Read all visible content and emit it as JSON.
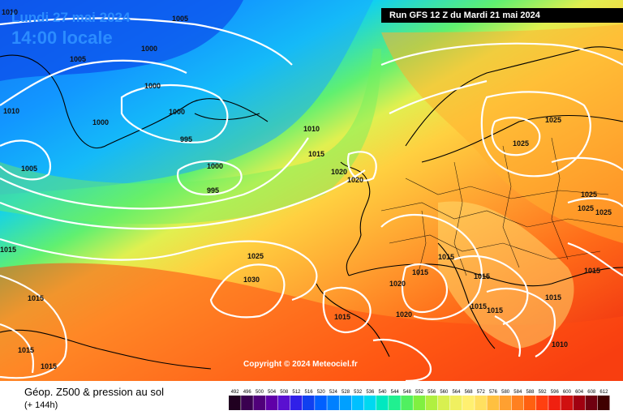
{
  "header": {
    "valid_date": "Lundi 27 mai 2024",
    "valid_time": "14:00 locale",
    "run_info": "Run GFS 12 Z du Mardi 21 mai 2024"
  },
  "copyright": "Copyright © 2024 Meteociel.fr",
  "footer": {
    "title": "Géop. Z500 & pression au sol",
    "subtitle": "(+ 144h)"
  },
  "legend": {
    "labels": [
      "492",
      "496",
      "500",
      "504",
      "508",
      "512",
      "516",
      "520",
      "524",
      "528",
      "532",
      "536",
      "540",
      "544",
      "548",
      "552",
      "556",
      "560",
      "564",
      "568",
      "572",
      "576",
      "580",
      "584",
      "588",
      "592",
      "596",
      "600",
      "604",
      "608",
      "612"
    ],
    "colors": [
      "#200020",
      "#3a0050",
      "#50007a",
      "#6000a8",
      "#5a10d0",
      "#3020e8",
      "#1040f0",
      "#0060ff",
      "#0080ff",
      "#00a0ff",
      "#00c0ff",
      "#00d8f0",
      "#00e8c0",
      "#20f090",
      "#50f060",
      "#80f040",
      "#b0f040",
      "#d8f050",
      "#f0f060",
      "#fff070",
      "#ffe060",
      "#ffc040",
      "#ffa030",
      "#ff8020",
      "#ff6010",
      "#ff4010",
      "#f02010",
      "#d01010",
      "#a00010",
      "#700010",
      "#400000"
    ]
  },
  "isobars": [
    {
      "text": "1010"
    },
    {
      "text": "1005"
    },
    {
      "text": "1000"
    },
    {
      "text": "1005"
    },
    {
      "text": "1000"
    },
    {
      "text": "1000"
    },
    {
      "text": "1010"
    },
    {
      "text": "1000"
    },
    {
      "text": "995"
    },
    {
      "text": "1005"
    },
    {
      "text": "1000"
    },
    {
      "text": "995"
    },
    {
      "text": "1010"
    },
    {
      "text": "1015"
    },
    {
      "text": "1020"
    },
    {
      "text": "1020"
    },
    {
      "text": "1015"
    },
    {
      "text": "1025"
    },
    {
      "text": "1030"
    },
    {
      "text": "1015"
    },
    {
      "text": "1015"
    },
    {
      "text": "1015"
    },
    {
      "text": "1015"
    },
    {
      "text": "1020"
    },
    {
      "text": "1015"
    },
    {
      "text": "1015"
    },
    {
      "text": "1020"
    },
    {
      "text": "1015"
    },
    {
      "text": "1015"
    },
    {
      "text": "1015"
    },
    {
      "text": "1015"
    },
    {
      "text": "1010"
    },
    {
      "text": "1025"
    },
    {
      "text": "1025"
    },
    {
      "text": "1025"
    },
    {
      "text": "1025"
    },
    {
      "text": "1025"
    },
    {
      "text": "1015"
    }
  ]
}
